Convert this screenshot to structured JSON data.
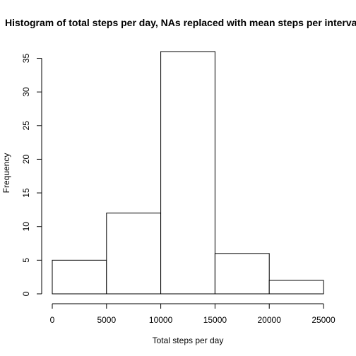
{
  "chart_data": {
    "type": "bar",
    "title": "Histogram of total steps per day, NAs replaced with mean steps per interval",
    "xlabel": "Total steps per day",
    "ylabel": "Frequency",
    "bins": [
      {
        "from": 0,
        "to": 5000,
        "count": 5
      },
      {
        "from": 5000,
        "to": 10000,
        "count": 12
      },
      {
        "from": 10000,
        "to": 15000,
        "count": 36
      },
      {
        "from": 15000,
        "to": 20000,
        "count": 6
      },
      {
        "from": 20000,
        "to": 25000,
        "count": 2
      }
    ],
    "xlim": [
      0,
      25000
    ],
    "ylim": [
      0,
      36
    ],
    "x_ticks": [
      0,
      5000,
      10000,
      15000,
      20000,
      25000
    ],
    "y_ticks": [
      0,
      5,
      10,
      15,
      20,
      25,
      30,
      35
    ],
    "grid": false,
    "legend": "none"
  }
}
